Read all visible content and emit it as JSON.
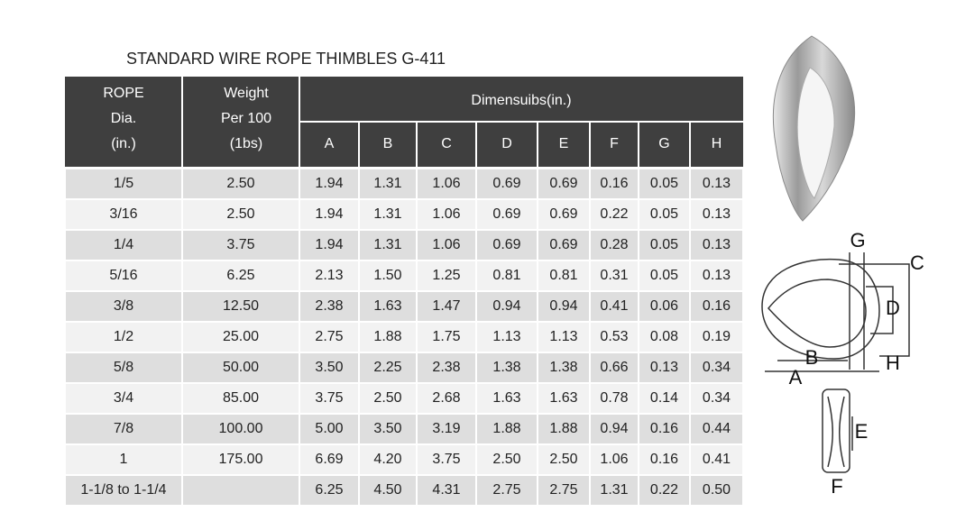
{
  "title": "STANDARD WIRE ROPE THIMBLES G-411",
  "table": {
    "header": {
      "rope": [
        "ROPE",
        "Dia.",
        "(in.)"
      ],
      "weight": [
        "Weight",
        "Per 100",
        "(1bs)"
      ],
      "dimensions": "Dimensuibs(in.)",
      "columns": [
        "A",
        "B",
        "C",
        "D",
        "E",
        "F",
        "G",
        "H"
      ]
    },
    "rows": [
      [
        "1/5",
        "2.50",
        "1.94",
        "1.31",
        "1.06",
        "0.69",
        "0.69",
        "0.16",
        "0.05",
        "0.13"
      ],
      [
        "3/16",
        "2.50",
        "1.94",
        "1.31",
        "1.06",
        "0.69",
        "0.69",
        "0.22",
        "0.05",
        "0.13"
      ],
      [
        "1/4",
        "3.75",
        "1.94",
        "1.31",
        "1.06",
        "0.69",
        "0.69",
        "0.28",
        "0.05",
        "0.13"
      ],
      [
        "5/16",
        "6.25",
        "2.13",
        "1.50",
        "1.25",
        "0.81",
        "0.81",
        "0.31",
        "0.05",
        "0.13"
      ],
      [
        "3/8",
        "12.50",
        "2.38",
        "1.63",
        "1.47",
        "0.94",
        "0.94",
        "0.41",
        "0.06",
        "0.16"
      ],
      [
        "1/2",
        "25.00",
        "2.75",
        "1.88",
        "1.75",
        "1.13",
        "1.13",
        "0.53",
        "0.08",
        "0.19"
      ],
      [
        "5/8",
        "50.00",
        "3.50",
        "2.25",
        "2.38",
        "1.38",
        "1.38",
        "0.66",
        "0.13",
        "0.34"
      ],
      [
        "3/4",
        "85.00",
        "3.75",
        "2.50",
        "2.68",
        "1.63",
        "1.63",
        "0.78",
        "0.14",
        "0.34"
      ],
      [
        "7/8",
        "100.00",
        "5.00",
        "3.50",
        "3.19",
        "1.88",
        "1.88",
        "0.94",
        "0.16",
        "0.44"
      ],
      [
        "1",
        "175.00",
        "6.69",
        "4.20",
        "3.75",
        "2.50",
        "2.50",
        "1.06",
        "0.16",
        "0.41"
      ],
      [
        "1-1/8 to 1-1/4",
        null,
        "6.25",
        "4.50",
        "4.31",
        "2.75",
        "2.75",
        "1.31",
        "0.22",
        "0.50"
      ]
    ]
  },
  "diagram": {
    "labels": [
      "G",
      "C",
      "D",
      "B",
      "H",
      "A",
      "E",
      "F"
    ]
  }
}
